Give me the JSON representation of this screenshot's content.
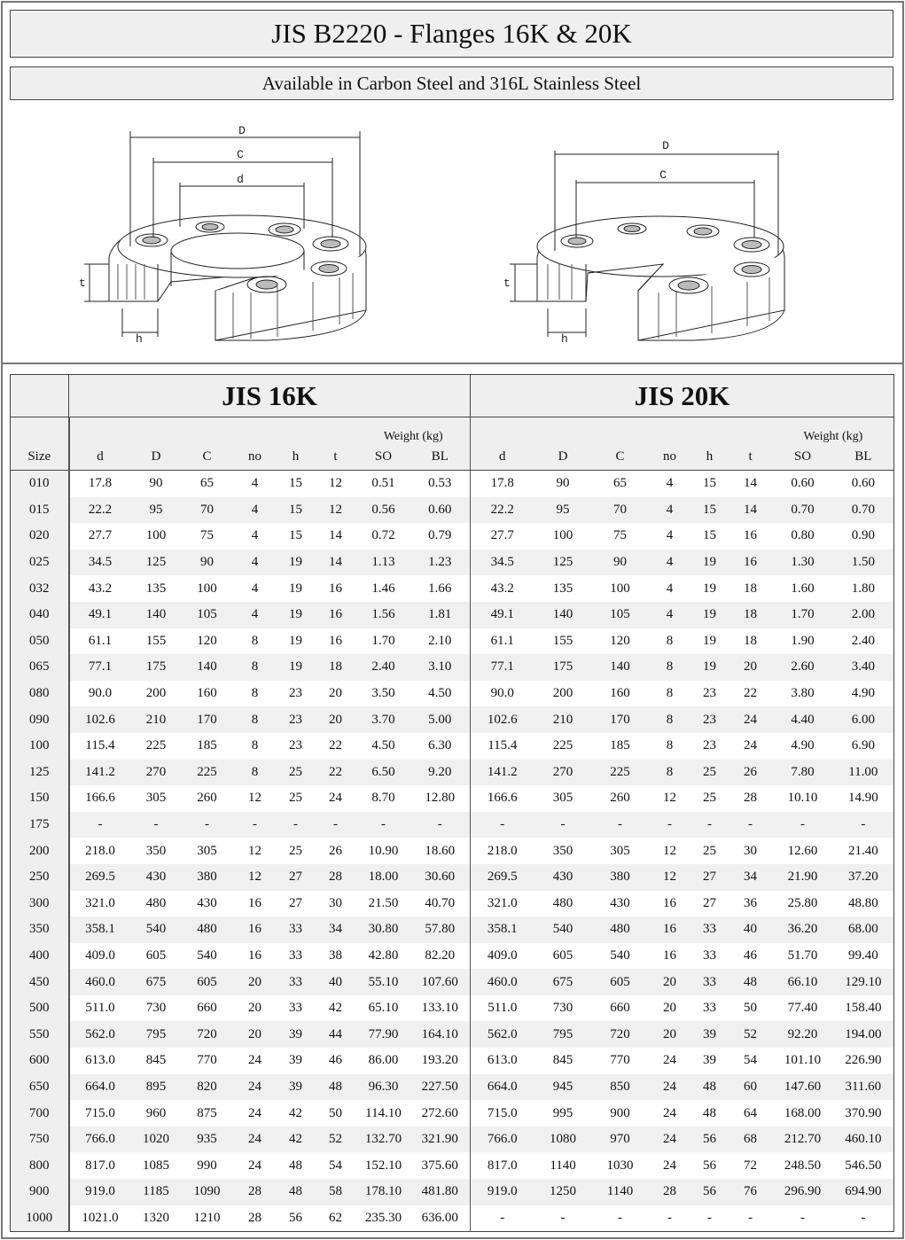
{
  "title": "JIS B2220 - Flanges 16K & 20K",
  "subtitle": "Available in Carbon Steel and 316L Stainless Steel",
  "drawings": {
    "slip_on": {
      "labels": {
        "D": "D",
        "C": "C",
        "d": "d",
        "t": "t",
        "h": "h"
      }
    },
    "blind": {
      "labels": {
        "D": "D",
        "C": "C",
        "t": "t",
        "h": "h"
      }
    }
  },
  "table": {
    "size_header": "Size",
    "groups": [
      "JIS 16K",
      "JIS 20K"
    ],
    "weight_header": "Weight (kg)",
    "columns": [
      "d",
      "D",
      "C",
      "no",
      "h",
      "t",
      "SO",
      "BL"
    ],
    "rows": [
      {
        "size": "010",
        "k16": [
          "17.8",
          "90",
          "65",
          "4",
          "15",
          "12",
          "0.51",
          "0.53"
        ],
        "k20": [
          "17.8",
          "90",
          "65",
          "4",
          "15",
          "14",
          "0.60",
          "0.60"
        ]
      },
      {
        "size": "015",
        "k16": [
          "22.2",
          "95",
          "70",
          "4",
          "15",
          "12",
          "0.56",
          "0.60"
        ],
        "k20": [
          "22.2",
          "95",
          "70",
          "4",
          "15",
          "14",
          "0.70",
          "0.70"
        ]
      },
      {
        "size": "020",
        "k16": [
          "27.7",
          "100",
          "75",
          "4",
          "15",
          "14",
          "0.72",
          "0.79"
        ],
        "k20": [
          "27.7",
          "100",
          "75",
          "4",
          "15",
          "16",
          "0.80",
          "0.90"
        ]
      },
      {
        "size": "025",
        "k16": [
          "34.5",
          "125",
          "90",
          "4",
          "19",
          "14",
          "1.13",
          "1.23"
        ],
        "k20": [
          "34.5",
          "125",
          "90",
          "4",
          "19",
          "16",
          "1.30",
          "1.50"
        ]
      },
      {
        "size": "032",
        "k16": [
          "43.2",
          "135",
          "100",
          "4",
          "19",
          "16",
          "1.46",
          "1.66"
        ],
        "k20": [
          "43.2",
          "135",
          "100",
          "4",
          "19",
          "18",
          "1.60",
          "1.80"
        ]
      },
      {
        "size": "040",
        "k16": [
          "49.1",
          "140",
          "105",
          "4",
          "19",
          "16",
          "1.56",
          "1.81"
        ],
        "k20": [
          "49.1",
          "140",
          "105",
          "4",
          "19",
          "18",
          "1.70",
          "2.00"
        ]
      },
      {
        "size": "050",
        "k16": [
          "61.1",
          "155",
          "120",
          "8",
          "19",
          "16",
          "1.70",
          "2.10"
        ],
        "k20": [
          "61.1",
          "155",
          "120",
          "8",
          "19",
          "18",
          "1.90",
          "2.40"
        ]
      },
      {
        "size": "065",
        "k16": [
          "77.1",
          "175",
          "140",
          "8",
          "19",
          "18",
          "2.40",
          "3.10"
        ],
        "k20": [
          "77.1",
          "175",
          "140",
          "8",
          "19",
          "20",
          "2.60",
          "3.40"
        ]
      },
      {
        "size": "080",
        "k16": [
          "90.0",
          "200",
          "160",
          "8",
          "23",
          "20",
          "3.50",
          "4.50"
        ],
        "k20": [
          "90.0",
          "200",
          "160",
          "8",
          "23",
          "22",
          "3.80",
          "4.90"
        ]
      },
      {
        "size": "090",
        "k16": [
          "102.6",
          "210",
          "170",
          "8",
          "23",
          "20",
          "3.70",
          "5.00"
        ],
        "k20": [
          "102.6",
          "210",
          "170",
          "8",
          "23",
          "24",
          "4.40",
          "6.00"
        ]
      },
      {
        "size": "100",
        "k16": [
          "115.4",
          "225",
          "185",
          "8",
          "23",
          "22",
          "4.50",
          "6.30"
        ],
        "k20": [
          "115.4",
          "225",
          "185",
          "8",
          "23",
          "24",
          "4.90",
          "6.90"
        ]
      },
      {
        "size": "125",
        "k16": [
          "141.2",
          "270",
          "225",
          "8",
          "25",
          "22",
          "6.50",
          "9.20"
        ],
        "k20": [
          "141.2",
          "270",
          "225",
          "8",
          "25",
          "26",
          "7.80",
          "11.00"
        ]
      },
      {
        "size": "150",
        "k16": [
          "166.6",
          "305",
          "260",
          "12",
          "25",
          "24",
          "8.70",
          "12.80"
        ],
        "k20": [
          "166.6",
          "305",
          "260",
          "12",
          "25",
          "28",
          "10.10",
          "14.90"
        ]
      },
      {
        "size": "175",
        "k16": [
          "-",
          "-",
          "-",
          "-",
          "-",
          "-",
          "-",
          "-"
        ],
        "k20": [
          "-",
          "-",
          "-",
          "-",
          "-",
          "-",
          "-",
          "-"
        ]
      },
      {
        "size": "200",
        "k16": [
          "218.0",
          "350",
          "305",
          "12",
          "25",
          "26",
          "10.90",
          "18.60"
        ],
        "k20": [
          "218.0",
          "350",
          "305",
          "12",
          "25",
          "30",
          "12.60",
          "21.40"
        ]
      },
      {
        "size": "250",
        "k16": [
          "269.5",
          "430",
          "380",
          "12",
          "27",
          "28",
          "18.00",
          "30.60"
        ],
        "k20": [
          "269.5",
          "430",
          "380",
          "12",
          "27",
          "34",
          "21.90",
          "37.20"
        ]
      },
      {
        "size": "300",
        "k16": [
          "321.0",
          "480",
          "430",
          "16",
          "27",
          "30",
          "21.50",
          "40.70"
        ],
        "k20": [
          "321.0",
          "480",
          "430",
          "16",
          "27",
          "36",
          "25.80",
          "48.80"
        ]
      },
      {
        "size": "350",
        "k16": [
          "358.1",
          "540",
          "480",
          "16",
          "33",
          "34",
          "30.80",
          "57.80"
        ],
        "k20": [
          "358.1",
          "540",
          "480",
          "16",
          "33",
          "40",
          "36.20",
          "68.00"
        ]
      },
      {
        "size": "400",
        "k16": [
          "409.0",
          "605",
          "540",
          "16",
          "33",
          "38",
          "42.80",
          "82.20"
        ],
        "k20": [
          "409.0",
          "605",
          "540",
          "16",
          "33",
          "46",
          "51.70",
          "99.40"
        ]
      },
      {
        "size": "450",
        "k16": [
          "460.0",
          "675",
          "605",
          "20",
          "33",
          "40",
          "55.10",
          "107.60"
        ],
        "k20": [
          "460.0",
          "675",
          "605",
          "20",
          "33",
          "48",
          "66.10",
          "129.10"
        ]
      },
      {
        "size": "500",
        "k16": [
          "511.0",
          "730",
          "660",
          "20",
          "33",
          "42",
          "65.10",
          "133.10"
        ],
        "k20": [
          "511.0",
          "730",
          "660",
          "20",
          "33",
          "50",
          "77.40",
          "158.40"
        ]
      },
      {
        "size": "550",
        "k16": [
          "562.0",
          "795",
          "720",
          "20",
          "39",
          "44",
          "77.90",
          "164.10"
        ],
        "k20": [
          "562.0",
          "795",
          "720",
          "20",
          "39",
          "52",
          "92.20",
          "194.00"
        ]
      },
      {
        "size": "600",
        "k16": [
          "613.0",
          "845",
          "770",
          "24",
          "39",
          "46",
          "86.00",
          "193.20"
        ],
        "k20": [
          "613.0",
          "845",
          "770",
          "24",
          "39",
          "54",
          "101.10",
          "226.90"
        ]
      },
      {
        "size": "650",
        "k16": [
          "664.0",
          "895",
          "820",
          "24",
          "39",
          "48",
          "96.30",
          "227.50"
        ],
        "k20": [
          "664.0",
          "945",
          "850",
          "24",
          "48",
          "60",
          "147.60",
          "311.60"
        ]
      },
      {
        "size": "700",
        "k16": [
          "715.0",
          "960",
          "875",
          "24",
          "42",
          "50",
          "114.10",
          "272.60"
        ],
        "k20": [
          "715.0",
          "995",
          "900",
          "24",
          "48",
          "64",
          "168.00",
          "370.90"
        ]
      },
      {
        "size": "750",
        "k16": [
          "766.0",
          "1020",
          "935",
          "24",
          "42",
          "52",
          "132.70",
          "321.90"
        ],
        "k20": [
          "766.0",
          "1080",
          "970",
          "24",
          "56",
          "68",
          "212.70",
          "460.10"
        ]
      },
      {
        "size": "800",
        "k16": [
          "817.0",
          "1085",
          "990",
          "24",
          "48",
          "54",
          "152.10",
          "375.60"
        ],
        "k20": [
          "817.0",
          "1140",
          "1030",
          "24",
          "56",
          "72",
          "248.50",
          "546.50"
        ]
      },
      {
        "size": "900",
        "k16": [
          "919.0",
          "1185",
          "1090",
          "28",
          "48",
          "58",
          "178.10",
          "481.80"
        ],
        "k20": [
          "919.0",
          "1250",
          "1140",
          "28",
          "56",
          "76",
          "296.90",
          "694.90"
        ]
      },
      {
        "size": "1000",
        "k16": [
          "1021.0",
          "1320",
          "1210",
          "28",
          "56",
          "62",
          "235.30",
          "636.00"
        ],
        "k20": [
          "-",
          "-",
          "-",
          "-",
          "-",
          "-",
          "-",
          "-"
        ]
      }
    ]
  }
}
